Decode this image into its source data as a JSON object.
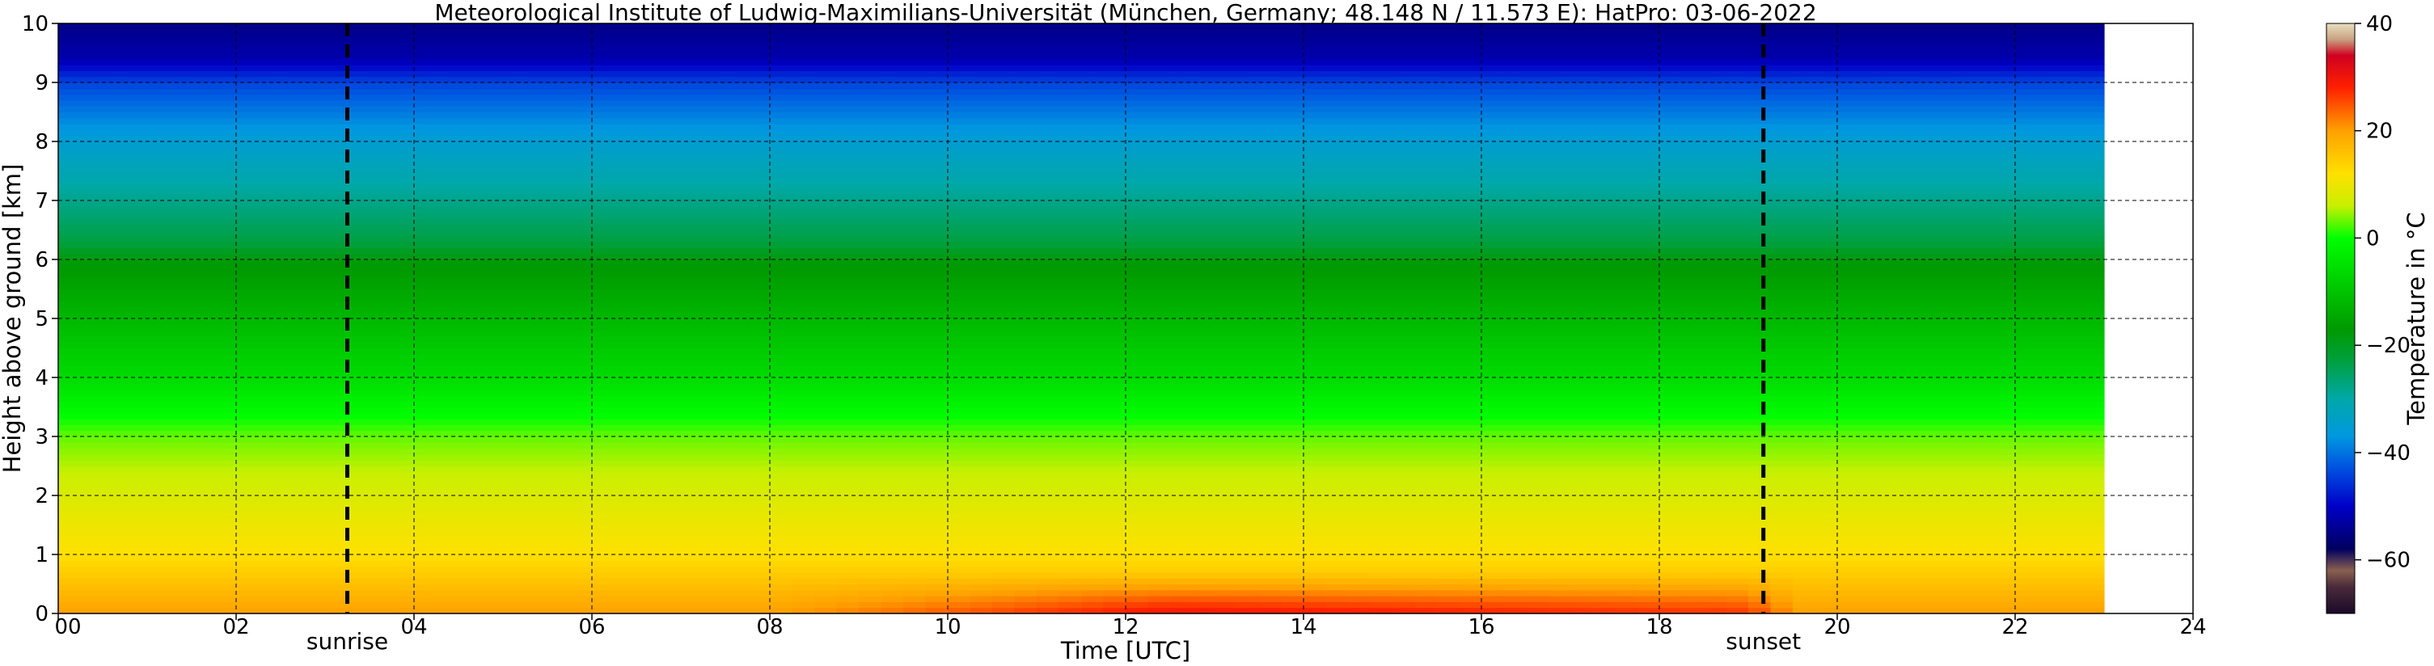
{
  "chart_data": {
    "type": "heatmap",
    "title": "Meteorological Institute of Ludwig-Maximilians-Universität (München, Germany; 48.148 N / 11.573 E):    HatPro: 03-06-2022",
    "xlabel": "Time [UTC]",
    "ylabel": "Height above ground [km]",
    "colorbar_label": "Temperature in °C",
    "xlim": [
      0,
      24
    ],
    "ylim": [
      0,
      10
    ],
    "data_end_hour": 23,
    "x_ticks": [
      0,
      2,
      4,
      6,
      8,
      10,
      12,
      14,
      16,
      18,
      20,
      22,
      24
    ],
    "x_tick_labels": [
      "00",
      "02",
      "04",
      "06",
      "08",
      "10",
      "12",
      "14",
      "16",
      "18",
      "20",
      "22",
      "24"
    ],
    "y_ticks": [
      0,
      1,
      2,
      3,
      4,
      5,
      6,
      7,
      8,
      9,
      10
    ],
    "y_tick_labels": [
      "0",
      "1",
      "2",
      "3",
      "4",
      "5",
      "6",
      "7",
      "8",
      "9",
      "10"
    ],
    "grid": true,
    "colorbar": {
      "range": [
        -70,
        40
      ],
      "ticks": [
        -60,
        -40,
        -20,
        0,
        20,
        40
      ],
      "tick_labels": [
        "−60",
        "−40",
        "−20",
        "0",
        "20",
        "40"
      ],
      "stops": [
        {
          "value": -70,
          "color": "#1a0a28"
        },
        {
          "value": -65,
          "color": "#4a2a3a"
        },
        {
          "value": -62,
          "color": "#8a6050"
        },
        {
          "value": -58,
          "color": "#000060"
        },
        {
          "value": -50,
          "color": "#0000c8"
        },
        {
          "value": -43,
          "color": "#0050e0"
        },
        {
          "value": -37,
          "color": "#0098e0"
        },
        {
          "value": -30,
          "color": "#00a8a8"
        },
        {
          "value": -23,
          "color": "#00a040"
        },
        {
          "value": -17,
          "color": "#009a00"
        },
        {
          "value": -8,
          "color": "#00d000"
        },
        {
          "value": 0,
          "color": "#00ff00"
        },
        {
          "value": 6,
          "color": "#c8f000"
        },
        {
          "value": 12,
          "color": "#ffe000"
        },
        {
          "value": 20,
          "color": "#ffa000"
        },
        {
          "value": 28,
          "color": "#ff2000"
        },
        {
          "value": 34,
          "color": "#d00020"
        },
        {
          "value": 37,
          "color": "#c8a080"
        },
        {
          "value": 40,
          "color": "#e8e0c0"
        }
      ]
    },
    "profile": {
      "heights_km": [
        0,
        0.5,
        1,
        2,
        3,
        4,
        5,
        6,
        6.3,
        7,
        8,
        9,
        9.4,
        10
      ],
      "temperatures_c": [
        20,
        16,
        12,
        8,
        3,
        -6,
        -12,
        -18,
        -23,
        -28,
        -35,
        -44,
        -52,
        -55
      ]
    },
    "surface_warming": {
      "start_hour": 8,
      "peak_hour": 12.5,
      "end_hour": 19.8,
      "peak_delta_c": 10,
      "depth_km": 0.7
    },
    "events": [
      {
        "name": "sunrise",
        "label": "sunrise",
        "hour": 3.25
      },
      {
        "name": "sunset",
        "label": "sunset",
        "hour": 19.17
      }
    ]
  }
}
